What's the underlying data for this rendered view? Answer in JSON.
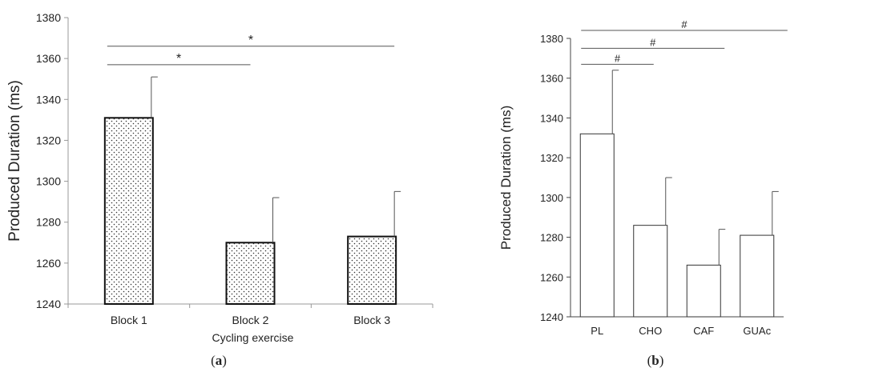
{
  "panels": [
    {
      "label_open": "(",
      "label_letter": "a",
      "label_close": ")"
    },
    {
      "label_open": "(",
      "label_letter": "b",
      "label_close": ")"
    }
  ],
  "chart_data": [
    {
      "type": "bar",
      "title": "",
      "xlabel": "Cycling exercise",
      "ylabel": "Produced Duration (ms)",
      "categories": [
        "Block 1",
        "Block 2",
        "Block 3"
      ],
      "values": [
        1331,
        1270,
        1273
      ],
      "error_upper": [
        1351,
        1292,
        1295
      ],
      "ylim": [
        1240,
        1380
      ],
      "yticks": [
        1240,
        1260,
        1280,
        1300,
        1320,
        1340,
        1360,
        1380
      ],
      "bar_fill": "dotted",
      "bar_color": "#ffffff",
      "grid": false,
      "annotations": [
        {
          "from": 0,
          "to": 1,
          "label": "*",
          "y": 1357
        },
        {
          "from": 0,
          "to": 2,
          "label": "*",
          "y": 1366
        }
      ]
    },
    {
      "type": "bar",
      "title": "",
      "xlabel": "",
      "ylabel": "Produced Duration (ms)",
      "categories": [
        "PL",
        "CHO",
        "CAF",
        "GUAc"
      ],
      "values": [
        1332,
        1286,
        1266,
        1281
      ],
      "error_upper": [
        1364,
        1310,
        1284,
        1303
      ],
      "ylim": [
        1240,
        1380
      ],
      "yticks": [
        1240,
        1260,
        1280,
        1300,
        1320,
        1340,
        1360,
        1380
      ],
      "bar_fill": "solid",
      "bar_color": "#ffffff",
      "grid": false,
      "annotations": [
        {
          "from": 0,
          "to": 1,
          "label": "#",
          "y": 1367
        },
        {
          "from": 0,
          "to": 2,
          "label": "#",
          "y": 1375
        },
        {
          "from": 0,
          "to": 3,
          "label": "#",
          "y": 1384
        }
      ]
    }
  ]
}
